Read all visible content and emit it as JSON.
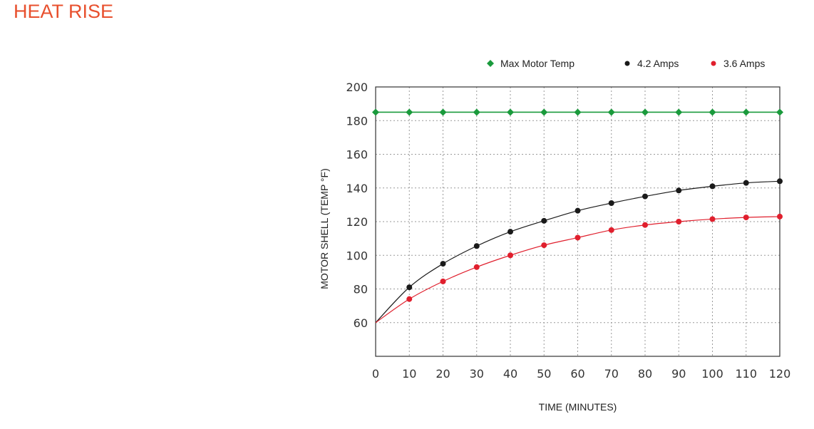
{
  "page": {
    "heading": "HEAT RISE",
    "heading_color": "#e8502e"
  },
  "chart_data": {
    "type": "line",
    "title": "",
    "xlabel": "TIME (MINUTES)",
    "ylabel": "MOTOR SHELL (TEMP °F)",
    "xlim": [
      0,
      120
    ],
    "ylim": [
      40,
      200
    ],
    "x_ticks": [
      0,
      10,
      20,
      30,
      40,
      50,
      60,
      70,
      80,
      90,
      100,
      110,
      120
    ],
    "y_ticks": [
      60,
      80,
      100,
      120,
      140,
      160,
      180,
      200
    ],
    "grid": true,
    "legend_position": "top-right",
    "x": [
      0,
      10,
      20,
      30,
      40,
      50,
      60,
      70,
      80,
      90,
      100,
      110,
      120
    ],
    "series": [
      {
        "name": "Max Motor Temp",
        "marker": "diamond",
        "color": "#1a9a3c",
        "values": [
          185,
          185,
          185,
          185,
          185,
          185,
          185,
          185,
          185,
          185,
          185,
          185,
          185
        ]
      },
      {
        "name": "4.2 Amps",
        "marker": "circle",
        "color": "#1a1a1a",
        "values": [
          60,
          81,
          95,
          105.5,
          114,
          120.5,
          126.5,
          131,
          135,
          138.5,
          141,
          143,
          144
        ]
      },
      {
        "name": "3.6 Amps",
        "marker": "circle",
        "color": "#e01f2d",
        "values": [
          60,
          74,
          84.5,
          93,
          100,
          106,
          110.5,
          115,
          118,
          120,
          121.5,
          122.5,
          123
        ]
      }
    ]
  }
}
